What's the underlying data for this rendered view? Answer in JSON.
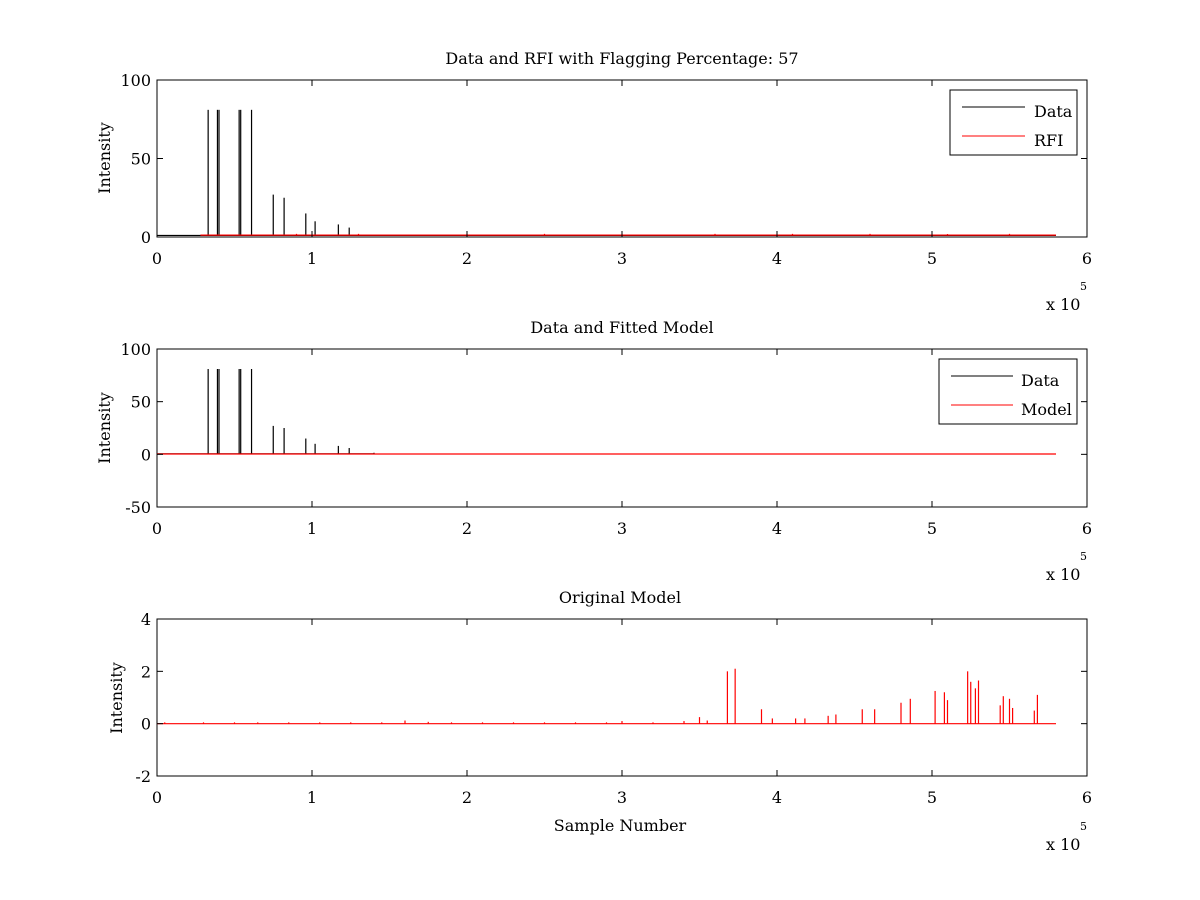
{
  "chart_data": [
    {
      "type": "line",
      "title": "Data and RFI with Flagging Percentage: 57",
      "xlabel": "",
      "ylabel": "Intensity",
      "xlim": [
        0,
        6
      ],
      "ylim": [
        0,
        100
      ],
      "xticks": [
        "0",
        "1",
        "2",
        "3",
        "4",
        "5",
        "6"
      ],
      "yticks": [
        "0",
        "50",
        "100"
      ],
      "x_multiplier_base": "x 10",
      "x_multiplier_exponent": "5",
      "legend": {
        "position": "top-right",
        "entries": [
          {
            "label": "Data",
            "color": "#000000"
          },
          {
            "label": "RFI",
            "color": "#ff0000"
          }
        ]
      },
      "series": [
        {
          "name": "Data",
          "color": "#000000",
          "baseline": 1.0,
          "x_range": [
            0,
            5.8
          ],
          "peaks": [
            [
              0.33,
              81
            ],
            [
              0.39,
              81
            ],
            [
              0.4,
              81
            ],
            [
              0.53,
              81
            ],
            [
              0.54,
              81
            ],
            [
              0.61,
              81
            ],
            [
              0.75,
              27
            ],
            [
              0.82,
              25
            ],
            [
              0.96,
              15
            ],
            [
              1.02,
              10
            ],
            [
              1.17,
              8
            ],
            [
              1.24,
              6
            ]
          ]
        },
        {
          "name": "RFI",
          "color": "#ff0000",
          "baseline": 1.2,
          "x_range": [
            0.28,
            5.8
          ],
          "peaks": [
            [
              0.9,
              2
            ],
            [
              1.3,
              2
            ],
            [
              2.0,
              1.8
            ],
            [
              2.5,
              2
            ],
            [
              3.0,
              1.8
            ],
            [
              3.6,
              2
            ],
            [
              4.1,
              2
            ],
            [
              4.6,
              2
            ],
            [
              5.1,
              1.9
            ],
            [
              5.5,
              2
            ]
          ]
        }
      ]
    },
    {
      "type": "line",
      "title": "Data and Fitted Model",
      "xlabel": "",
      "ylabel": "Intensity",
      "xlim": [
        0,
        6
      ],
      "ylim": [
        -50,
        100
      ],
      "xticks": [
        "0",
        "1",
        "2",
        "3",
        "4",
        "5",
        "6"
      ],
      "yticks": [
        "-50",
        "0",
        "50",
        "100"
      ],
      "x_multiplier_base": "x 10",
      "x_multiplier_exponent": "5",
      "legend": {
        "position": "top-right",
        "entries": [
          {
            "label": "Data",
            "color": "#000000"
          },
          {
            "label": "Model",
            "color": "#ff0000"
          }
        ]
      },
      "series": [
        {
          "name": "Data",
          "color": "#000000",
          "baseline": 0.5,
          "x_range": [
            0,
            1.4
          ],
          "peaks": [
            [
              0.33,
              81
            ],
            [
              0.39,
              81
            ],
            [
              0.4,
              81
            ],
            [
              0.53,
              81
            ],
            [
              0.54,
              81
            ],
            [
              0.61,
              81
            ],
            [
              0.75,
              27
            ],
            [
              0.82,
              25
            ],
            [
              0.96,
              15
            ],
            [
              1.02,
              10
            ],
            [
              1.17,
              8
            ],
            [
              1.24,
              6
            ],
            [
              1.4,
              1.5
            ]
          ]
        },
        {
          "name": "Model",
          "color": "#ff0000",
          "baseline": 0.3,
          "x_range": [
            0,
            5.8
          ],
          "peaks": []
        }
      ]
    },
    {
      "type": "line",
      "title": "Original Model",
      "xlabel": "Sample Number",
      "ylabel": "Intensity",
      "xlim": [
        0,
        6
      ],
      "ylim": [
        -2,
        4
      ],
      "xticks": [
        "0",
        "1",
        "2",
        "3",
        "4",
        "5",
        "6"
      ],
      "yticks": [
        "-2",
        "0",
        "2",
        "4"
      ],
      "x_multiplier_base": "x 10",
      "x_multiplier_exponent": "5",
      "legend": null,
      "series": [
        {
          "name": "Original Model",
          "color": "#ff0000",
          "baseline": 0.0,
          "x_range": [
            0,
            5.8
          ],
          "peaks": [
            [
              0.05,
              0.05
            ],
            [
              0.3,
              0.05
            ],
            [
              0.5,
              0.05
            ],
            [
              0.65,
              0.05
            ],
            [
              0.85,
              0.05
            ],
            [
              1.05,
              0.05
            ],
            [
              1.25,
              0.05
            ],
            [
              1.45,
              0.05
            ],
            [
              1.6,
              0.12
            ],
            [
              1.75,
              0.07
            ],
            [
              1.9,
              0.05
            ],
            [
              2.1,
              0.05
            ],
            [
              2.3,
              0.05
            ],
            [
              2.5,
              0.05
            ],
            [
              2.7,
              0.05
            ],
            [
              2.9,
              0.05
            ],
            [
              3.0,
              0.1
            ],
            [
              3.2,
              0.05
            ],
            [
              3.4,
              0.1
            ],
            [
              3.5,
              0.25
            ],
            [
              3.55,
              0.12
            ],
            [
              3.68,
              2.0
            ],
            [
              3.73,
              2.1
            ],
            [
              3.9,
              0.55
            ],
            [
              3.97,
              0.2
            ],
            [
              4.12,
              0.2
            ],
            [
              4.18,
              0.2
            ],
            [
              4.33,
              0.3
            ],
            [
              4.38,
              0.35
            ],
            [
              4.55,
              0.55
            ],
            [
              4.63,
              0.55
            ],
            [
              4.8,
              0.8
            ],
            [
              4.86,
              0.95
            ],
            [
              5.02,
              1.25
            ],
            [
              5.08,
              1.2
            ],
            [
              5.1,
              0.9
            ],
            [
              5.23,
              2.0
            ],
            [
              5.25,
              1.6
            ],
            [
              5.28,
              1.35
            ],
            [
              5.3,
              1.65
            ],
            [
              5.44,
              0.7
            ],
            [
              5.46,
              1.05
            ],
            [
              5.5,
              0.95
            ],
            [
              5.52,
              0.6
            ],
            [
              5.66,
              0.5
            ],
            [
              5.68,
              1.1
            ]
          ]
        }
      ]
    }
  ]
}
